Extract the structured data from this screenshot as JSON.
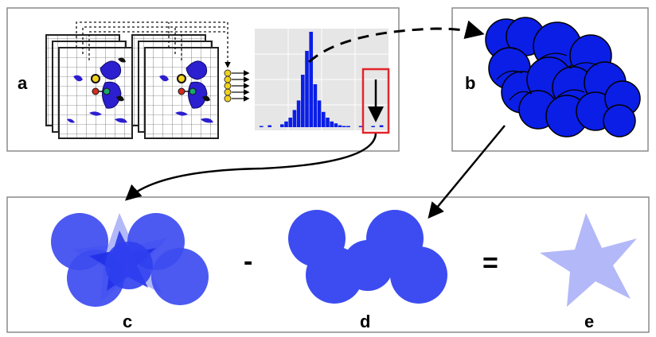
{
  "panels": {
    "a": {
      "label": "a"
    },
    "b": {
      "label": "b"
    },
    "c": {
      "label": "c"
    },
    "d": {
      "label": "d"
    },
    "e": {
      "label": "e"
    }
  },
  "operators": {
    "minus": "-",
    "equals": "="
  },
  "colors": {
    "blue": "#0a1ee6",
    "shape_blue": "#3d4cf0",
    "overlay_blue": "#4c58ff",
    "light_blue": "#b3b8f8",
    "yellow": "#f2d21b",
    "red_box": "#e3252b",
    "panel_border": "#8a8a8a",
    "hist_bg": "#e6e6e6"
  },
  "histogram": {
    "values": [
      1,
      0,
      2,
      0,
      0,
      3,
      6,
      10,
      18,
      28,
      55,
      80,
      100,
      45,
      28,
      16,
      10,
      6,
      4,
      2,
      1,
      1,
      0,
      0,
      1,
      0,
      0,
      1,
      0,
      2
    ]
  }
}
